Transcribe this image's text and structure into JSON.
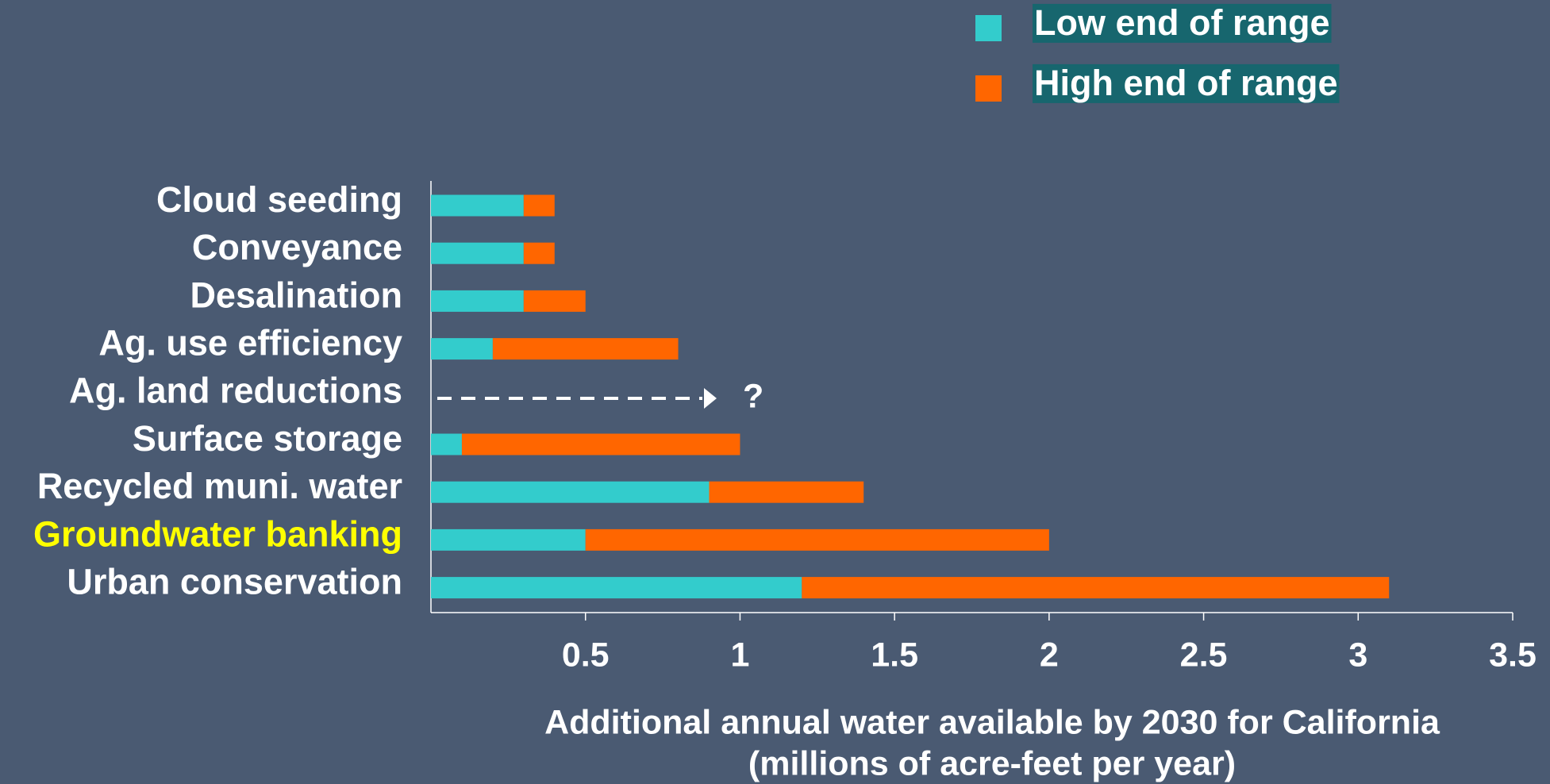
{
  "chart_data": {
    "type": "range_bar",
    "orientation": "horizontal",
    "categories": [
      "Cloud seeding",
      "Conveyance",
      "Desalination",
      "Ag. use efficiency",
      "Ag. land reductions",
      "Surface storage",
      "Recycled muni. water",
      "Groundwater banking",
      "Urban conservation"
    ],
    "category_colors": [
      "#ffffff",
      "#ffffff",
      "#ffffff",
      "#ffffff",
      "#ffffff",
      "#ffffff",
      "#ffffff",
      "#ffff00",
      "#ffffff"
    ],
    "series": [
      {
        "name": "Low end of range",
        "color": "#33cccc",
        "values": [
          0.3,
          0.3,
          0.3,
          0.2,
          null,
          0.1,
          0.9,
          0.5,
          1.2
        ]
      },
      {
        "name": "High end of range",
        "color": "#ff6600",
        "values": [
          0.4,
          0.4,
          0.5,
          0.8,
          null,
          1.0,
          1.4,
          2.0,
          3.1
        ]
      }
    ],
    "annotation": "?",
    "xlabel": [
      "Additional annual water available by 2030 for California",
      "(millions of acre-feet per year)"
    ],
    "xlim": [
      0,
      3.5
    ],
    "xticks": [
      0.5,
      1,
      1.5,
      2,
      2.5,
      3,
      3.5
    ],
    "legend": "top-right",
    "legend_label_background": "#17666e"
  }
}
